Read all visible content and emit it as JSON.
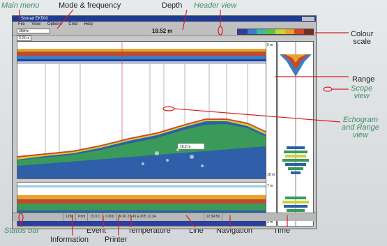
{
  "app": {
    "window_title": "Simrad EK500",
    "menu_items": [
      "File",
      "View",
      "Options",
      "Cmd",
      "Help"
    ],
    "frequency_value": "38kHz",
    "depth_value": "18.52 m",
    "top_range_value": "0.25 m",
    "range_top_label": "0 m",
    "range_bottom_label": "18 m",
    "range_lower_top_label": "7 m",
    "range_lower_bottom_label": "3 m",
    "bottom_depth_tag": "16.2 m",
    "status": {
      "event": "1250",
      "printer": "Print",
      "temperature": "15.0 C",
      "line": "0.000",
      "navigation": "N 60 23.45 E 005 12.34",
      "time": "12:34:56"
    },
    "colour_scale": [
      "#2b3f9e",
      "#3a7fc4",
      "#46b5a6",
      "#62c048",
      "#c9d23a",
      "#e9a22d",
      "#d2452b",
      "#7a2a1d"
    ]
  },
  "annotations": {
    "main_menu": "Main menu",
    "mode_frequency": "Mode & frequency",
    "depth": "Depth",
    "header_view": "Header view",
    "colour_scale": "Colour\nscale",
    "range": "Range",
    "scope_view": "Scope\nview",
    "echogram_range_view": "Echogram\nand Range\nview",
    "status_bar": "Status bar",
    "information": "Information",
    "event": "Event",
    "printer": "Printer",
    "temperature": "Temperature",
    "line": "Line",
    "navigation": "Navigation",
    "time": "Time"
  }
}
